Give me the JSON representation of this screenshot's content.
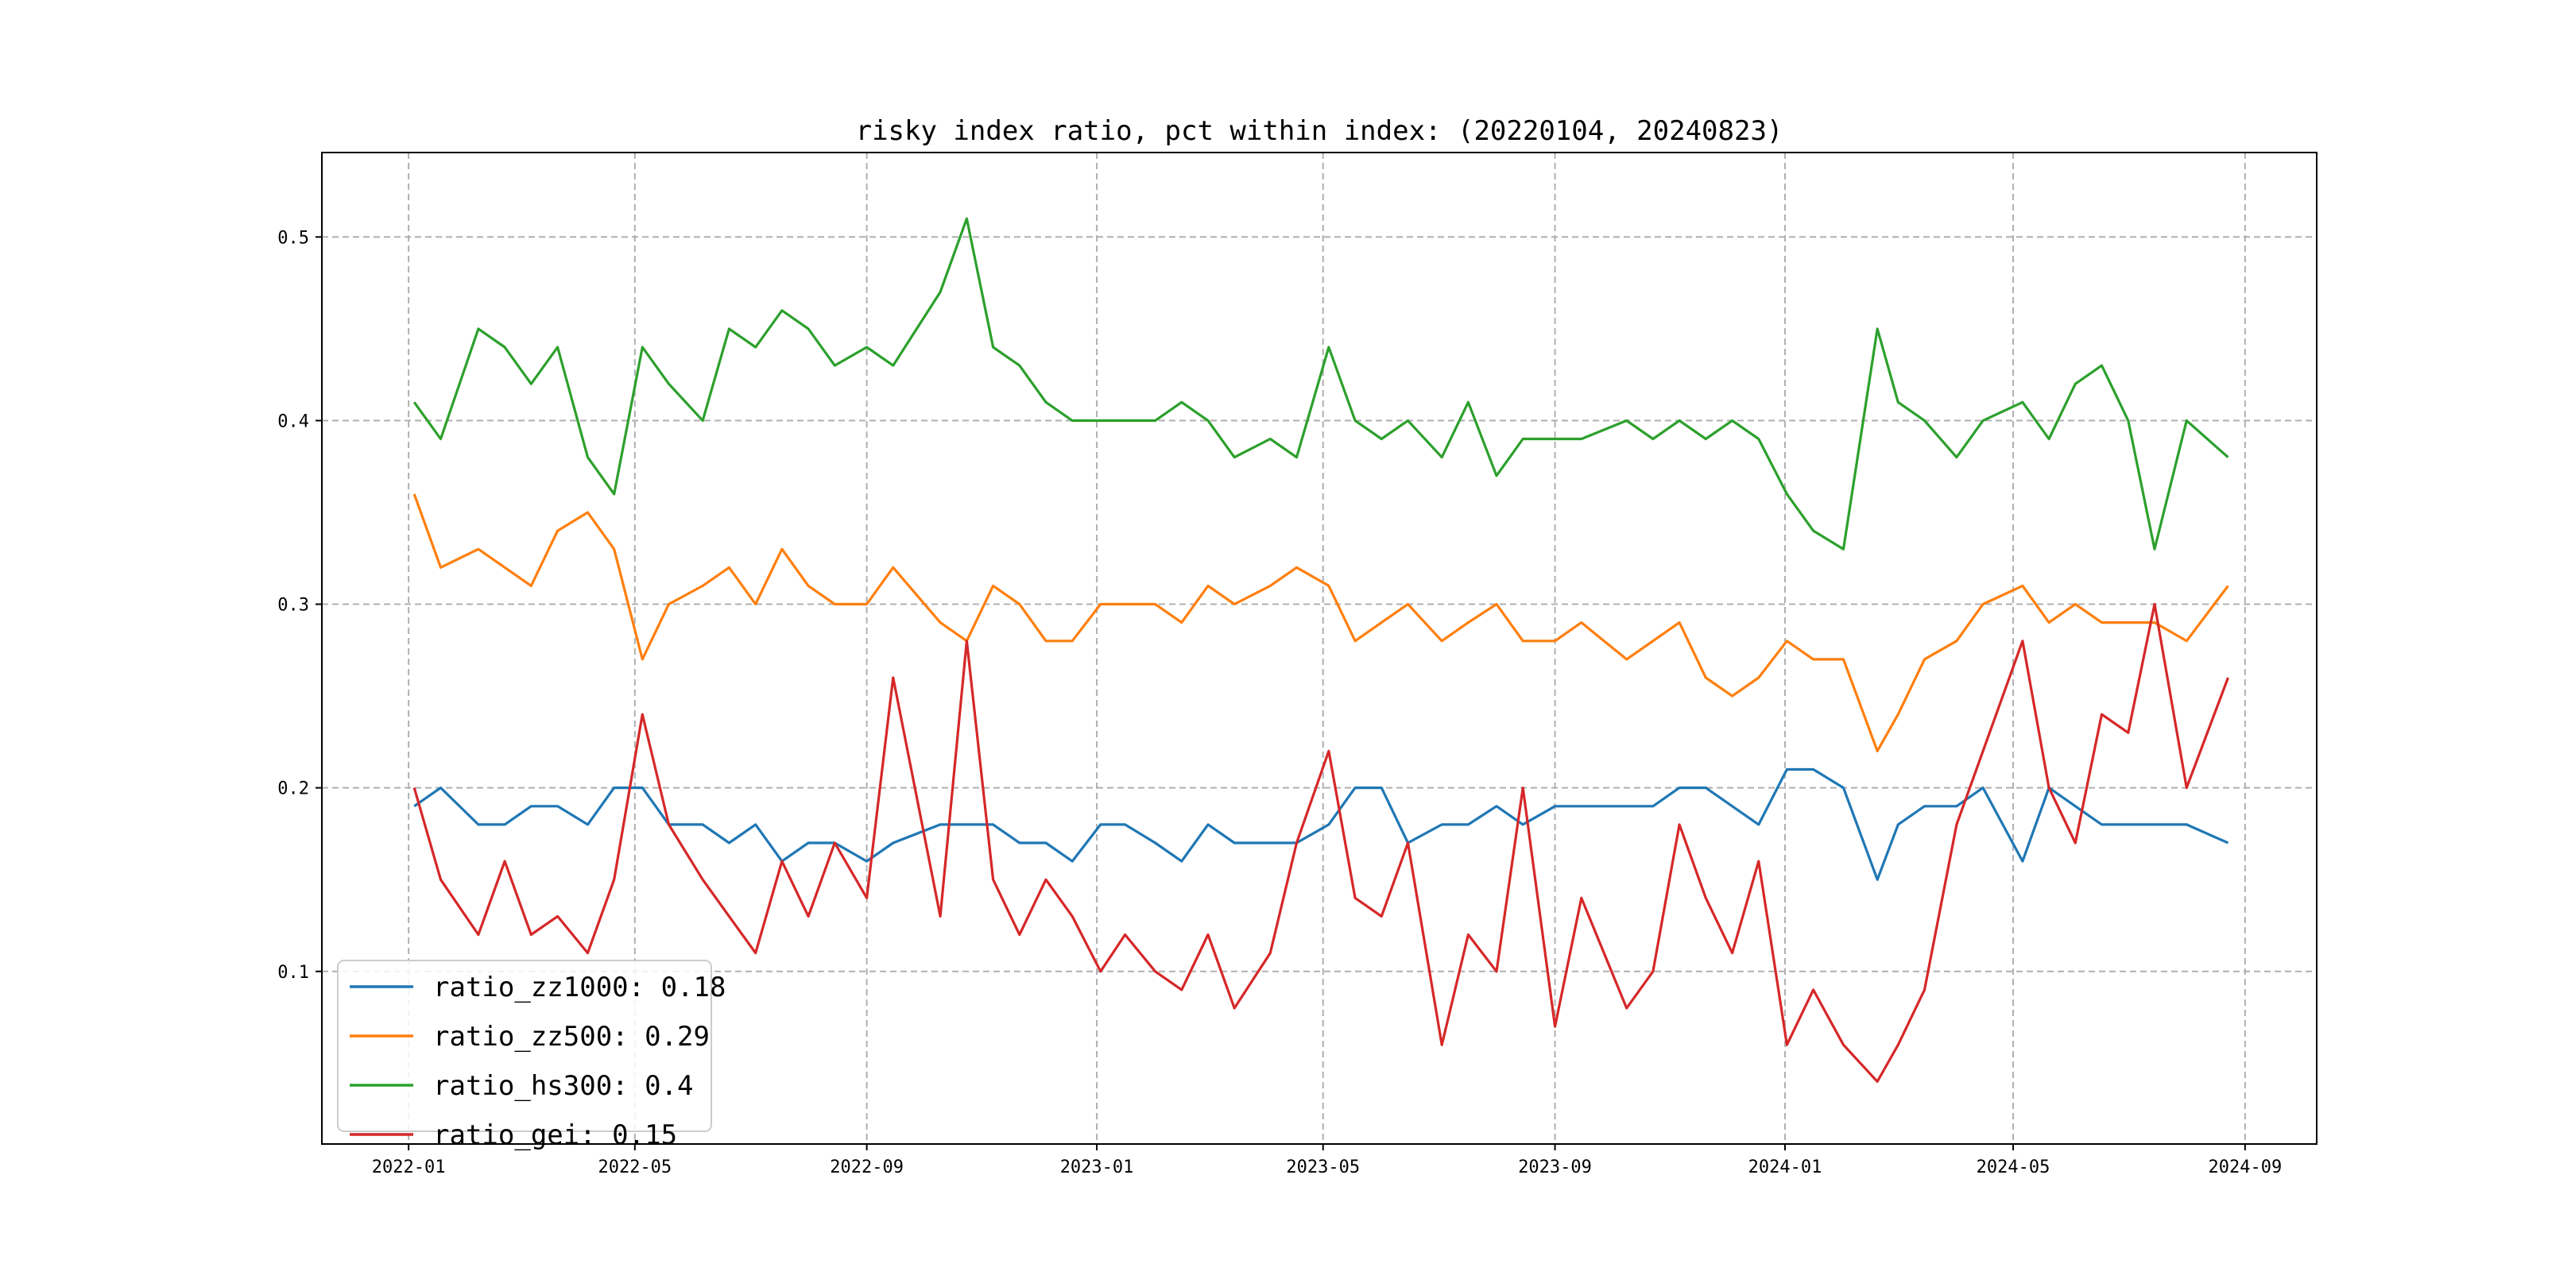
{
  "chart_data": {
    "type": "line",
    "title": "risky index ratio, pct within index: (20220104, 20240823)",
    "xlabel": "",
    "ylabel": "",
    "xlim": [
      "2021-11-16",
      "2024-10-09"
    ],
    "ylim": [
      0.006,
      0.546
    ],
    "grid": true,
    "legend_position": "lower-left",
    "x_ticks": [
      "2022-01",
      "2022-05",
      "2022-09",
      "2023-01",
      "2023-05",
      "2023-09",
      "2024-01",
      "2024-05",
      "2024-09"
    ],
    "y_ticks": [
      "0.1",
      "0.2",
      "0.3",
      "0.4",
      "0.5"
    ],
    "x": [
      "2022-01-04",
      "2022-01-18",
      "2022-02-07",
      "2022-02-21",
      "2022-03-07",
      "2022-03-21",
      "2022-04-06",
      "2022-04-20",
      "2022-05-05",
      "2022-05-19",
      "2022-06-06",
      "2022-06-20",
      "2022-07-04",
      "2022-07-18",
      "2022-08-01",
      "2022-08-15",
      "2022-09-01",
      "2022-09-15",
      "2022-10-10",
      "2022-10-24",
      "2022-11-07",
      "2022-11-21",
      "2022-12-05",
      "2022-12-19",
      "2023-01-03",
      "2023-01-16",
      "2023-02-01",
      "2023-02-15",
      "2023-03-01",
      "2023-03-15",
      "2023-04-03",
      "2023-04-17",
      "2023-05-04",
      "2023-05-18",
      "2023-06-01",
      "2023-06-15",
      "2023-07-03",
      "2023-07-17",
      "2023-08-01",
      "2023-08-15",
      "2023-09-01",
      "2023-09-15",
      "2023-10-09",
      "2023-10-23",
      "2023-11-06",
      "2023-11-20",
      "2023-12-04",
      "2023-12-18",
      "2024-01-02",
      "2024-01-16",
      "2024-02-01",
      "2024-02-19",
      "2024-03-01",
      "2024-03-15",
      "2024-04-01",
      "2024-04-15",
      "2024-05-06",
      "2024-05-20",
      "2024-06-03",
      "2024-06-17",
      "2024-07-01",
      "2024-07-15",
      "2024-08-01",
      "2024-08-23"
    ],
    "series": [
      {
        "name": "ratio_zz1000: 0.18",
        "color": "#1f77b4",
        "values": [
          0.19,
          0.2,
          0.18,
          0.18,
          0.19,
          0.19,
          0.18,
          0.2,
          0.2,
          0.18,
          0.18,
          0.17,
          0.18,
          0.16,
          0.17,
          0.17,
          0.16,
          0.17,
          0.18,
          0.18,
          0.18,
          0.17,
          0.17,
          0.16,
          0.18,
          0.18,
          0.17,
          0.16,
          0.18,
          0.17,
          0.17,
          0.17,
          0.18,
          0.2,
          0.2,
          0.17,
          0.18,
          0.18,
          0.19,
          0.18,
          0.19,
          0.19,
          0.19,
          0.19,
          0.2,
          0.2,
          0.19,
          0.18,
          0.21,
          0.21,
          0.2,
          0.15,
          0.18,
          0.19,
          0.19,
          0.2,
          0.16,
          0.2,
          0.19,
          0.18,
          0.18,
          0.18,
          0.18,
          0.17
        ]
      },
      {
        "name": "ratio_zz500: 0.29",
        "color": "#ff7f0e",
        "values": [
          0.36,
          0.32,
          0.33,
          0.32,
          0.31,
          0.34,
          0.35,
          0.33,
          0.27,
          0.3,
          0.31,
          0.32,
          0.3,
          0.33,
          0.31,
          0.3,
          0.3,
          0.32,
          0.29,
          0.28,
          0.31,
          0.3,
          0.28,
          0.28,
          0.3,
          0.3,
          0.3,
          0.29,
          0.31,
          0.3,
          0.31,
          0.32,
          0.31,
          0.28,
          0.29,
          0.3,
          0.28,
          0.29,
          0.3,
          0.28,
          0.28,
          0.29,
          0.27,
          0.28,
          0.29,
          0.26,
          0.25,
          0.26,
          0.28,
          0.27,
          0.27,
          0.22,
          0.24,
          0.27,
          0.28,
          0.3,
          0.31,
          0.29,
          0.3,
          0.29,
          0.29,
          0.29,
          0.28,
          0.31
        ]
      },
      {
        "name": "ratio_hs300: 0.4",
        "color": "#2ca02c",
        "values": [
          0.41,
          0.39,
          0.45,
          0.44,
          0.42,
          0.44,
          0.38,
          0.36,
          0.44,
          0.42,
          0.4,
          0.45,
          0.44,
          0.46,
          0.45,
          0.43,
          0.44,
          0.43,
          0.47,
          0.51,
          0.44,
          0.43,
          0.41,
          0.4,
          0.4,
          0.4,
          0.4,
          0.41,
          0.4,
          0.38,
          0.39,
          0.38,
          0.44,
          0.4,
          0.39,
          0.4,
          0.38,
          0.41,
          0.37,
          0.39,
          0.39,
          0.39,
          0.4,
          0.39,
          0.4,
          0.39,
          0.4,
          0.39,
          0.36,
          0.34,
          0.33,
          0.45,
          0.41,
          0.4,
          0.38,
          0.4,
          0.41,
          0.39,
          0.42,
          0.43,
          0.4,
          0.33,
          0.4,
          0.38
        ]
      },
      {
        "name": "ratio_gei: 0.15",
        "color": "#d62728",
        "values": [
          0.2,
          0.15,
          0.12,
          0.16,
          0.12,
          0.13,
          0.11,
          0.15,
          0.24,
          0.18,
          0.15,
          0.13,
          0.11,
          0.16,
          0.13,
          0.17,
          0.14,
          0.26,
          0.13,
          0.28,
          0.15,
          0.12,
          0.15,
          0.13,
          0.1,
          0.12,
          0.1,
          0.09,
          0.12,
          0.08,
          0.11,
          0.17,
          0.22,
          0.14,
          0.13,
          0.17,
          0.06,
          0.12,
          0.1,
          0.2,
          0.07,
          0.14,
          0.08,
          0.1,
          0.18,
          0.14,
          0.11,
          0.16,
          0.06,
          0.09,
          0.06,
          0.04,
          0.06,
          0.09,
          0.18,
          0.22,
          0.28,
          0.2,
          0.17,
          0.24,
          0.23,
          0.3,
          0.2,
          0.26
        ]
      }
    ]
  }
}
